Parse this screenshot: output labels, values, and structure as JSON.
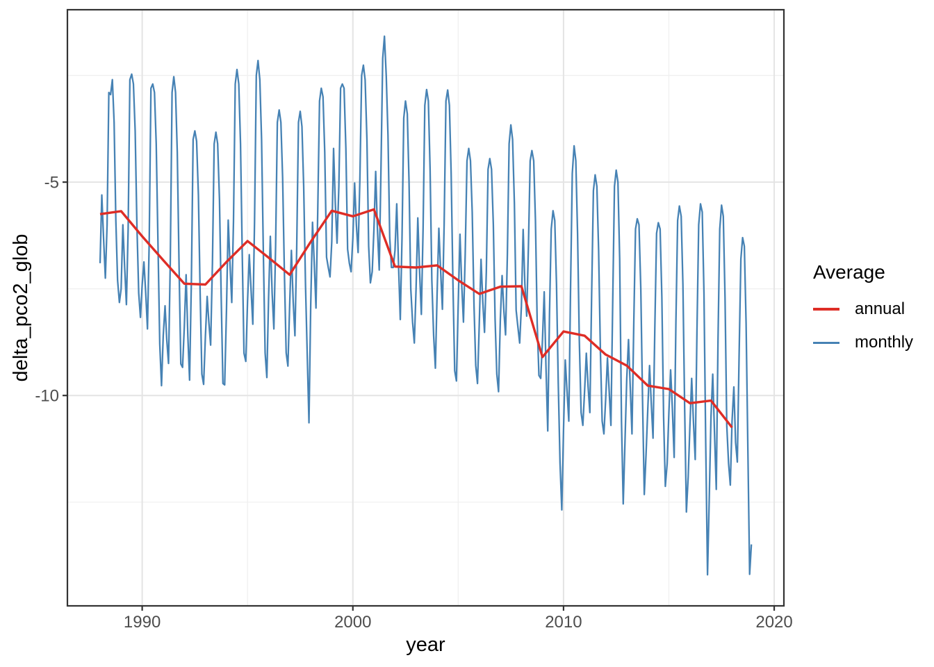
{
  "page": {
    "background": "#ffffff"
  },
  "axes": {
    "x_title": "year",
    "y_title": "delta_pco2_glob"
  },
  "legend": {
    "title": "Average",
    "entries": [
      {
        "label": "annual",
        "color": "#DE2D26"
      },
      {
        "label": "monthly",
        "color": "#4682B4"
      }
    ]
  },
  "chart_data": {
    "type": "line",
    "title": "",
    "xlabel": "year",
    "ylabel": "delta_pco2_glob",
    "x_ticks": [
      "1990",
      "2000",
      "2010",
      "2020"
    ],
    "x_tick_values": [
      1990,
      2000,
      2010,
      2020
    ],
    "y_ticks": [
      "-5",
      "-10"
    ],
    "y_tick_values": [
      -5,
      -10
    ],
    "x_minor_gridlines": [
      1995,
      2005,
      2015
    ],
    "y_minor_gridlines": [
      -2.5,
      -7.5,
      -12.5
    ],
    "xlim": [
      1986.45,
      2020.46
    ],
    "ylim": [
      -14.93,
      -0.96
    ],
    "grid": true,
    "legend_position": "right",
    "legend_title": "Average",
    "series": [
      {
        "name": "annual",
        "color": "#DE2D26",
        "x": [
          1988,
          1989,
          1990,
          1991,
          1992,
          1993,
          1994,
          1995,
          1996,
          1997,
          1998,
          1999,
          2000,
          2001,
          2002,
          2003,
          2004,
          2005,
          2006,
          2007,
          2008,
          2009,
          2010,
          2011,
          2012,
          2013,
          2014,
          2015,
          2016,
          2017,
          2018
        ],
        "values": [
          -5.75,
          -5.68,
          -6.27,
          -6.83,
          -7.38,
          -7.4,
          -6.87,
          -6.38,
          -6.77,
          -7.17,
          -6.4,
          -5.67,
          -5.8,
          -5.64,
          -6.98,
          -7.0,
          -6.95,
          -7.3,
          -7.62,
          -7.45,
          -7.44,
          -9.1,
          -8.5,
          -8.6,
          -9.04,
          -9.3,
          -9.77,
          -9.85,
          -10.18,
          -10.12,
          -10.75
        ]
      },
      {
        "name": "monthly",
        "color": "#4682B4",
        "start_year": 1988,
        "points_per_year": 12,
        "values": [
          -6.9,
          -5.3,
          -6.3,
          -7.25,
          -6.0,
          -2.9,
          -2.95,
          -2.6,
          -3.6,
          -5.9,
          -7.3,
          -7.82,
          -7.5,
          -6.0,
          -7.0,
          -7.87,
          -6.1,
          -2.6,
          -2.47,
          -2.7,
          -3.8,
          -6.0,
          -7.6,
          -8.17,
          -7.4,
          -6.87,
          -7.6,
          -8.44,
          -6.4,
          -2.8,
          -2.7,
          -2.9,
          -4.1,
          -6.5,
          -8.8,
          -9.77,
          -8.6,
          -7.9,
          -8.7,
          -9.25,
          -6.9,
          -2.9,
          -2.53,
          -2.9,
          -4.3,
          -7.0,
          -9.26,
          -9.34,
          -8.4,
          -7.17,
          -8.6,
          -9.64,
          -7.3,
          -4.0,
          -3.8,
          -4.04,
          -5.3,
          -7.6,
          -9.5,
          -9.74,
          -8.6,
          -7.68,
          -8.3,
          -8.82,
          -6.9,
          -4.1,
          -3.83,
          -4.1,
          -5.4,
          -7.7,
          -9.72,
          -9.75,
          -8.0,
          -5.89,
          -6.9,
          -7.82,
          -5.9,
          -2.7,
          -2.36,
          -2.7,
          -4.1,
          -6.7,
          -9.01,
          -9.2,
          -7.8,
          -6.7,
          -7.5,
          -8.33,
          -5.9,
          -2.5,
          -2.15,
          -2.6,
          -4.0,
          -6.6,
          -9.0,
          -9.58,
          -7.7,
          -6.27,
          -7.6,
          -8.44,
          -6.5,
          -3.6,
          -3.31,
          -3.6,
          -4.9,
          -7.1,
          -9.0,
          -9.31,
          -7.9,
          -6.6,
          -7.8,
          -8.6,
          -6.6,
          -3.6,
          -3.34,
          -3.7,
          -5.1,
          -7.4,
          -9.04,
          -10.64,
          -7.9,
          -5.94,
          -6.9,
          -7.95,
          -5.7,
          -3.1,
          -2.8,
          -3.0,
          -4.3,
          -6.76,
          -7.0,
          -7.22,
          -6.4,
          -4.21,
          -5.5,
          -6.43,
          -5.1,
          -2.8,
          -2.7,
          -2.8,
          -4.2,
          -6.57,
          -6.9,
          -7.1,
          -6.3,
          -5.02,
          -6.0,
          -6.65,
          -4.9,
          -2.5,
          -2.26,
          -2.6,
          -4.0,
          -6.5,
          -7.36,
          -7.1,
          -6.1,
          -4.75,
          -6.1,
          -7.06,
          -4.7,
          -2.1,
          -1.58,
          -2.51,
          -3.9,
          -6.3,
          -7.0,
          -7.0,
          -6.6,
          -5.51,
          -6.9,
          -8.22,
          -6.3,
          -3.5,
          -3.1,
          -3.4,
          -5.0,
          -7.5,
          -8.28,
          -8.77,
          -7.5,
          -5.84,
          -7.1,
          -8.1,
          -6.1,
          -3.2,
          -2.83,
          -3.1,
          -4.7,
          -7.3,
          -8.6,
          -9.36,
          -7.6,
          -6.08,
          -7.1,
          -7.98,
          -6.0,
          -3.1,
          -2.84,
          -3.2,
          -4.8,
          -7.4,
          -9.42,
          -9.66,
          -7.9,
          -6.22,
          -7.4,
          -8.28,
          -6.7,
          -4.5,
          -4.21,
          -4.5,
          -5.7,
          -7.9,
          -9.3,
          -9.72,
          -8.3,
          -6.81,
          -7.8,
          -8.52,
          -7.1,
          -4.7,
          -4.45,
          -4.7,
          -6.0,
          -8.2,
          -9.5,
          -9.91,
          -8.2,
          -7.19,
          -8.0,
          -8.58,
          -6.7,
          -4.1,
          -3.66,
          -4.0,
          -5.5,
          -8.0,
          -8.39,
          -8.77,
          -7.9,
          -6.11,
          -7.4,
          -8.14,
          -6.5,
          -4.5,
          -4.26,
          -4.5,
          -5.9,
          -8.3,
          -9.53,
          -9.6,
          -8.7,
          -7.57,
          -9.3,
          -10.83,
          -8.1,
          -6.1,
          -5.67,
          -5.9,
          -7.4,
          -9.7,
          -11.6,
          -12.68,
          -10.8,
          -9.17,
          -9.9,
          -10.6,
          -7.5,
          -4.8,
          -4.15,
          -4.5,
          -6.2,
          -8.7,
          -10.4,
          -10.7,
          -9.9,
          -9.01,
          -9.8,
          -10.4,
          -7.7,
          -5.2,
          -4.83,
          -5.1,
          -6.6,
          -9.0,
          -10.6,
          -10.9,
          -10.1,
          -9.12,
          -9.9,
          -10.7,
          -7.9,
          -5.1,
          -4.72,
          -5.0,
          -6.8,
          -10.6,
          -12.54,
          -11.1,
          -9.6,
          -8.69,
          -9.8,
          -10.9,
          -8.3,
          -6.1,
          -5.86,
          -6.0,
          -7.5,
          -10.1,
          -12.32,
          -11.4,
          -10.3,
          -9.3,
          -10.2,
          -11.0,
          -8.4,
          -6.2,
          -5.95,
          -6.1,
          -7.7,
          -10.5,
          -12.13,
          -11.6,
          -10.4,
          -9.4,
          -10.3,
          -11.45,
          -8.3,
          -5.9,
          -5.56,
          -5.8,
          -7.4,
          -10.3,
          -12.73,
          -11.9,
          -10.7,
          -9.6,
          -10.6,
          -11.5,
          -8.5,
          -6.0,
          -5.51,
          -5.7,
          -7.6,
          -11.1,
          -14.2,
          -12.4,
          -10.5,
          -9.5,
          -10.9,
          -12.2,
          -8.7,
          -6.1,
          -5.54,
          -5.8,
          -7.7,
          -10.7,
          -11.59,
          -12.1,
          -10.6,
          -9.8,
          -11.1,
          -11.56,
          -9.1,
          -6.8,
          -6.3,
          -6.5,
          -8.3,
          -11.3,
          -14.19,
          -13.49
        ]
      }
    ]
  }
}
